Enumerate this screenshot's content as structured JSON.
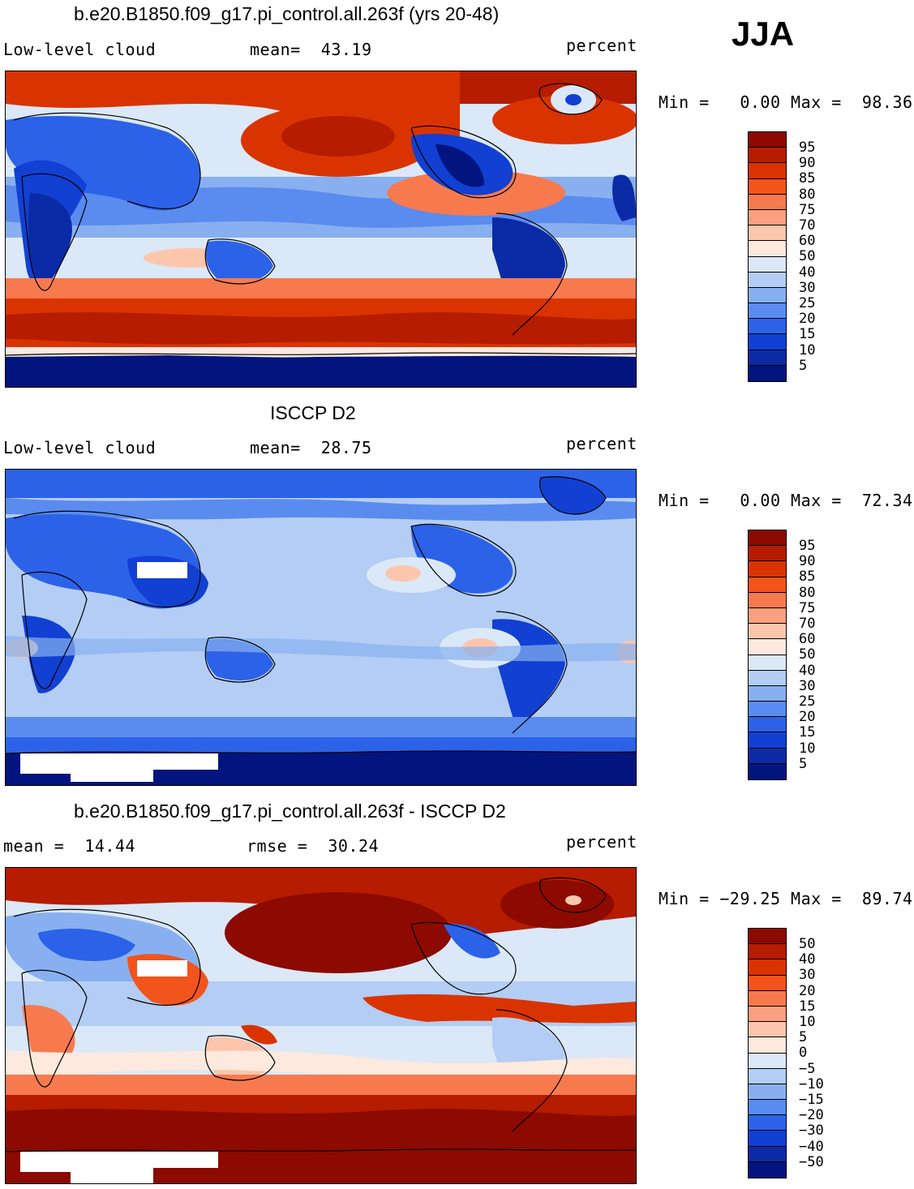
{
  "season": "JJA",
  "panels": [
    {
      "id": "model",
      "title": "b.e20.B1850.f09_g17.pi_control.all.263f (yrs 20-48)",
      "left_label": "Low-level cloud",
      "mid_label": "mean=  43.19",
      "right_label": "percent",
      "minmax": "Min =   0.00 Max =  98.36",
      "map_style": "model"
    },
    {
      "id": "obs",
      "title": "ISCCP D2",
      "left_label": "Low-level cloud",
      "mid_label": "mean=  28.75",
      "right_label": "percent",
      "minmax": "Min =   0.00 Max =  72.34",
      "map_style": "obs"
    },
    {
      "id": "diff",
      "title": "b.e20.B1850.f09_g17.pi_control.all.263f - ISCCP D2",
      "left_label": "mean =  14.44",
      "mid_label": "rmse =  30.24",
      "right_label": "percent",
      "minmax": "Min = −29.25 Max =  89.74",
      "map_style": "diff"
    }
  ],
  "colorbars": {
    "abs": {
      "labels": [
        "95",
        "90",
        "85",
        "80",
        "75",
        "70",
        "60",
        "50",
        "40",
        "30",
        "25",
        "20",
        "15",
        "10",
        "5"
      ],
      "colors": [
        "#8c0a00",
        "#b51c00",
        "#d93400",
        "#f2541c",
        "#f77a4f",
        "#fa9f7f",
        "#fcc6ad",
        "#fde9dd",
        "#dbe8f7",
        "#b4cdf4",
        "#88b0f0",
        "#5a8bef",
        "#2c62e8",
        "#1140d2",
        "#0b2aa6",
        "#02147e"
      ]
    },
    "diff": {
      "labels": [
        "50",
        "40",
        "30",
        "20",
        "15",
        "10",
        "5",
        "0",
        "−5",
        "−10",
        "−15",
        "−20",
        "−30",
        "−40",
        "−50"
      ],
      "colors": [
        "#8c0a00",
        "#b51c00",
        "#d93400",
        "#f2541c",
        "#f77a4f",
        "#fa9f7f",
        "#fcc6ad",
        "#fde9dd",
        "#dbe8f7",
        "#b4cdf4",
        "#88b0f0",
        "#5a8bef",
        "#2c62e8",
        "#1140d2",
        "#0b2aa6",
        "#02147e"
      ]
    }
  }
}
